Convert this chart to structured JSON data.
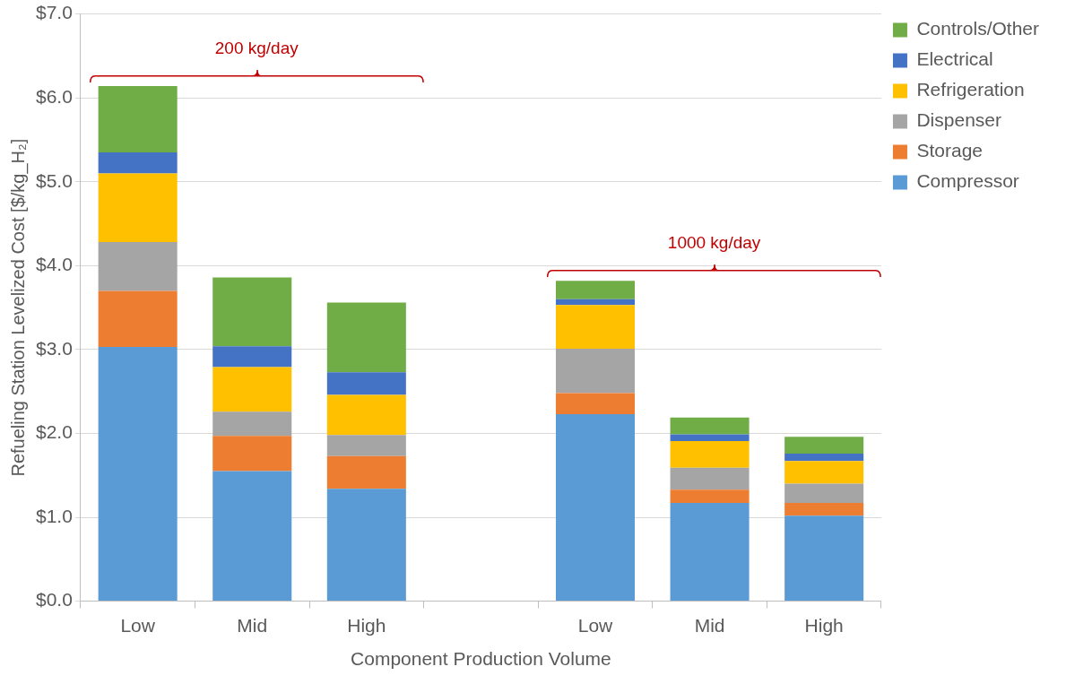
{
  "chart_data": {
    "type": "bar",
    "stacked": true,
    "xlabel": "Component Production Volume",
    "ylabel": "Refueling Station Levelized Cost [$/kg_H₂]",
    "categories": [
      "Low",
      "Mid",
      "High",
      null,
      "Low",
      "Mid",
      "High"
    ],
    "series": [
      {
        "name": "Compressor",
        "color": "#5b9bd5",
        "values": [
          3.03,
          1.55,
          1.34,
          null,
          2.23,
          1.17,
          1.02
        ]
      },
      {
        "name": "Storage",
        "color": "#ed7d31",
        "values": [
          0.67,
          0.42,
          0.39,
          null,
          0.25,
          0.16,
          0.15
        ]
      },
      {
        "name": "Dispenser",
        "color": "#a5a5a5",
        "values": [
          0.58,
          0.29,
          0.25,
          null,
          0.53,
          0.26,
          0.23
        ]
      },
      {
        "name": "Refrigeration",
        "color": "#ffc000",
        "values": [
          0.82,
          0.53,
          0.48,
          null,
          0.52,
          0.32,
          0.27
        ]
      },
      {
        "name": "Electrical",
        "color": "#4472c4",
        "values": [
          0.25,
          0.25,
          0.27,
          null,
          0.07,
          0.08,
          0.09
        ]
      },
      {
        "name": "Controls/Other",
        "color": "#70ad47",
        "values": [
          0.79,
          0.82,
          0.83,
          null,
          0.22,
          0.2,
          0.2
        ]
      }
    ],
    "ylim": [
      0,
      7
    ],
    "yticks": [
      {
        "value": 0,
        "label": "$0.0"
      },
      {
        "value": 1,
        "label": "$1.0"
      },
      {
        "value": 2,
        "label": "$2.0"
      },
      {
        "value": 3,
        "label": "$3.0"
      },
      {
        "value": 4,
        "label": "$4.0"
      },
      {
        "value": 5,
        "label": "$5.0"
      },
      {
        "value": 6,
        "label": "$6.0"
      },
      {
        "value": 7,
        "label": "$7.0"
      }
    ],
    "grid": "y",
    "legend": "top right",
    "annotations": [
      "200 kg/day",
      "1000 kg/day"
    ]
  }
}
